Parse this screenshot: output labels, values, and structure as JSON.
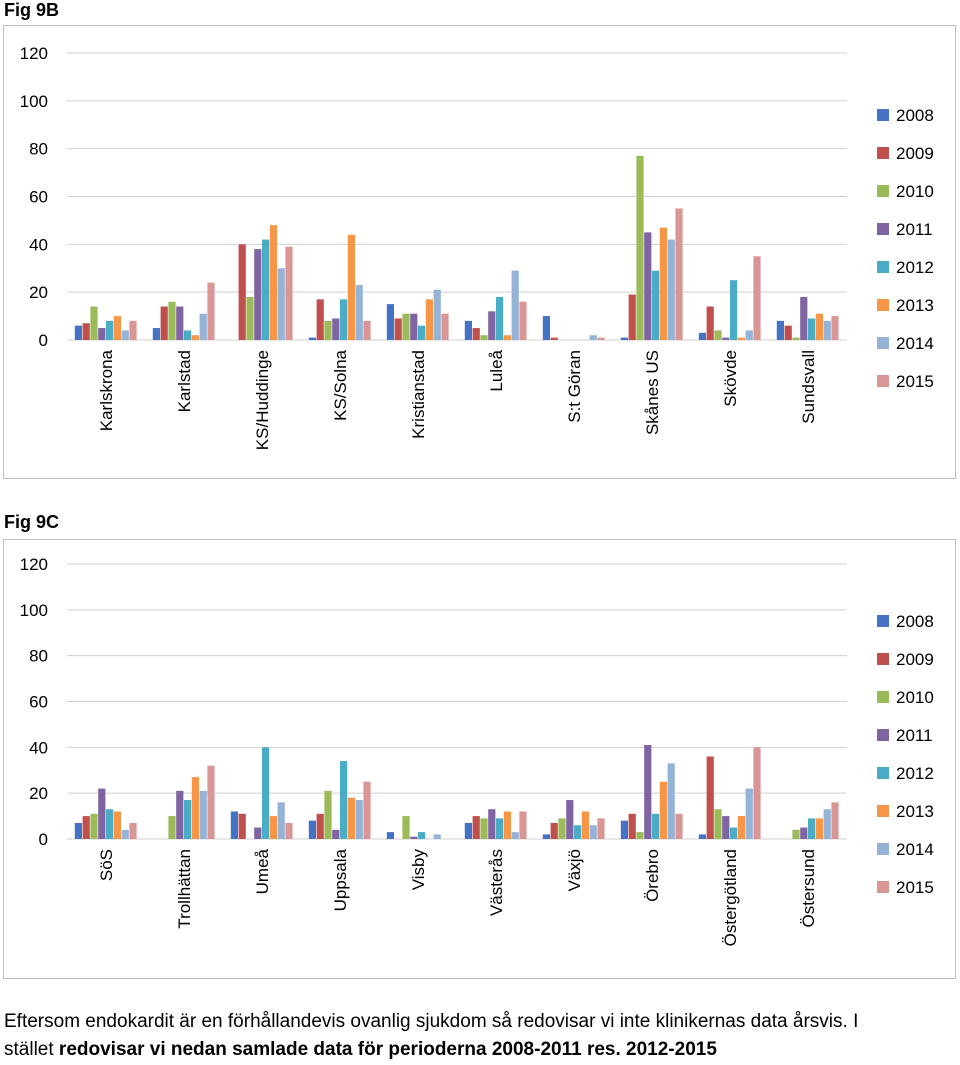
{
  "figures": [
    {
      "label": "Fig 9B"
    },
    {
      "label": "Fig 9C"
    }
  ],
  "chart_data": [
    {
      "type": "bar",
      "title": "",
      "xlabel": "",
      "ylabel": "",
      "ylim": [
        0,
        120
      ],
      "yticks": [
        0,
        20,
        40,
        60,
        80,
        100,
        120
      ],
      "grid": true,
      "legend": "right",
      "categories": [
        "Karlskrona",
        "Karlstad",
        "KS/Huddinge",
        "KS/Solna",
        "Kristianstad",
        "Luleå",
        "S:t Göran",
        "Skånes US",
        "Skövde",
        "Sundsvall"
      ],
      "series": [
        {
          "name": "2008",
          "color": "#4472c4",
          "values": [
            6,
            5,
            0,
            1,
            15,
            8,
            10,
            1,
            3,
            8
          ]
        },
        {
          "name": "2009",
          "color": "#c0504d",
          "values": [
            7,
            14,
            40,
            17,
            9,
            5,
            1,
            19,
            14,
            6
          ]
        },
        {
          "name": "2010",
          "color": "#9bbb59",
          "values": [
            14,
            16,
            18,
            8,
            11,
            2,
            0,
            77,
            4,
            1
          ]
        },
        {
          "name": "2011",
          "color": "#8064a2",
          "values": [
            5,
            14,
            38,
            9,
            11,
            12,
            0,
            45,
            1,
            18
          ]
        },
        {
          "name": "2012",
          "color": "#4bacc6",
          "values": [
            8,
            4,
            42,
            17,
            6,
            18,
            0,
            29,
            25,
            9
          ]
        },
        {
          "name": "2013",
          "color": "#f79646",
          "values": [
            10,
            2,
            48,
            44,
            17,
            2,
            0,
            47,
            1,
            11
          ]
        },
        {
          "name": "2014",
          "color": "#95b3d7",
          "values": [
            4,
            11,
            30,
            23,
            21,
            29,
            2,
            42,
            4,
            8
          ]
        },
        {
          "name": "2015",
          "color": "#d99694",
          "values": [
            8,
            24,
            39,
            8,
            11,
            16,
            1,
            55,
            35,
            10
          ]
        }
      ]
    },
    {
      "type": "bar",
      "title": "",
      "xlabel": "",
      "ylabel": "",
      "ylim": [
        0,
        120
      ],
      "yticks": [
        0,
        20,
        40,
        60,
        80,
        100,
        120
      ],
      "grid": true,
      "legend": "right",
      "categories": [
        "SöS",
        "Trollhättan",
        "Umeå",
        "Uppsala",
        "Visby",
        "Västerås",
        "Växjö",
        "Örebro",
        "Östergötland",
        "Östersund"
      ],
      "series": [
        {
          "name": "2008",
          "color": "#4472c4",
          "values": [
            7,
            0,
            12,
            8,
            3,
            7,
            2,
            8,
            2,
            0
          ]
        },
        {
          "name": "2009",
          "color": "#c0504d",
          "values": [
            10,
            0,
            11,
            11,
            0,
            10,
            7,
            11,
            36,
            0
          ]
        },
        {
          "name": "2010",
          "color": "#9bbb59",
          "values": [
            11,
            10,
            0,
            21,
            10,
            9,
            9,
            3,
            13,
            4
          ]
        },
        {
          "name": "2011",
          "color": "#8064a2",
          "values": [
            22,
            21,
            5,
            4,
            1,
            13,
            17,
            41,
            10,
            5
          ]
        },
        {
          "name": "2012",
          "color": "#4bacc6",
          "values": [
            13,
            17,
            40,
            34,
            3,
            9,
            6,
            11,
            5,
            9
          ]
        },
        {
          "name": "2013",
          "color": "#f79646",
          "values": [
            12,
            27,
            10,
            18,
            0,
            12,
            12,
            25,
            10,
            9
          ]
        },
        {
          "name": "2014",
          "color": "#95b3d7",
          "values": [
            4,
            21,
            16,
            17,
            2,
            3,
            6,
            33,
            22,
            13
          ]
        },
        {
          "name": "2015",
          "color": "#d99694",
          "values": [
            7,
            32,
            7,
            25,
            0,
            12,
            9,
            11,
            40,
            16
          ]
        }
      ]
    }
  ],
  "caption": {
    "line1": "Eftersom endokardit är en förhållandevis ovanlig sjukdom så redovisar vi inte klinikernas data årsvis. I",
    "line2_plain": "stället ",
    "line2_bold": "redovisar vi nedan samlade data för perioderna 2008-2011 res. 2012-2015"
  }
}
